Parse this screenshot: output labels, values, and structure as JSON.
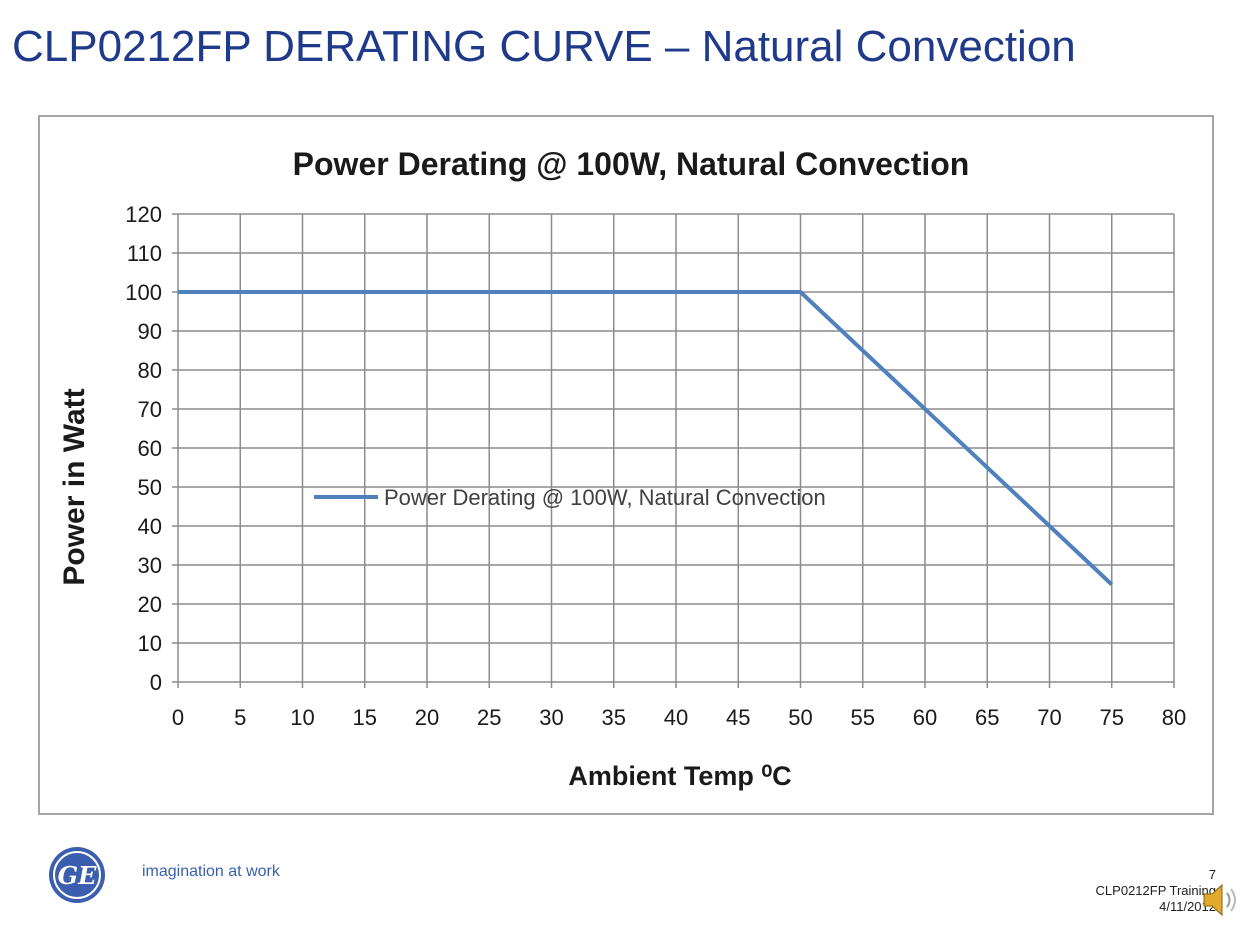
{
  "slide": {
    "title": "CLP0212FP DERATING CURVE – Natural Convection",
    "page_number": "7",
    "footer_label": "CLP0212FP Training",
    "footer_date": "4/11/2012"
  },
  "logo": {
    "tagline": "imagination at work",
    "monogram": "GE",
    "color": "#3b5fae",
    "icon": "ge-logo-icon"
  },
  "speaker": {
    "icon": "speaker-icon"
  },
  "chart_data": {
    "type": "line",
    "title": "Power Derating @ 100W, Natural Convection",
    "xlabel": "Ambient Temp ⁰C",
    "ylabel": "Power in Watt",
    "x_ticks": [
      0,
      5,
      10,
      15,
      20,
      25,
      30,
      35,
      40,
      45,
      50,
      55,
      60,
      65,
      70,
      75,
      80
    ],
    "y_ticks": [
      0,
      10,
      20,
      30,
      40,
      50,
      60,
      70,
      80,
      90,
      100,
      110,
      120
    ],
    "xlim": [
      0,
      80
    ],
    "ylim": [
      0,
      120
    ],
    "grid": true,
    "legend_position": "center",
    "series": [
      {
        "name": "Power Derating @ 100W, Natural Convection",
        "color": "#4f81bd",
        "x": [
          0,
          50,
          75
        ],
        "y": [
          100,
          100,
          25
        ]
      }
    ]
  }
}
